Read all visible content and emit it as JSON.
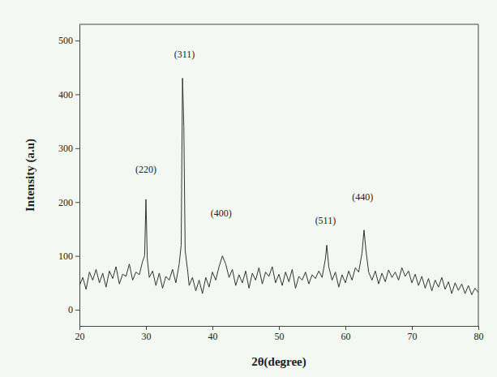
{
  "chart_data": {
    "type": "line",
    "x_label": "2θ(degree)",
    "y_label": "Intensity (a.u)",
    "color": "#333333",
    "xlim": [
      20,
      80
    ],
    "xticks": [
      20,
      30,
      40,
      50,
      60,
      70,
      80
    ],
    "ylim": [
      -30,
      530
    ],
    "yticks": [
      0,
      100,
      200,
      300,
      400,
      500
    ],
    "grid": false,
    "x": [
      20.0,
      20.5,
      21.0,
      21.5,
      22.0,
      22.5,
      23.0,
      23.5,
      24.0,
      24.5,
      25.0,
      25.5,
      26.0,
      26.5,
      27.0,
      27.5,
      28.0,
      28.5,
      29.0,
      29.5,
      29.8,
      30.0,
      30.2,
      30.5,
      31.0,
      31.5,
      32.0,
      32.5,
      33.0,
      33.5,
      34.0,
      34.5,
      35.0,
      35.3,
      35.5,
      35.7,
      35.9,
      36.3,
      36.5,
      37.0,
      37.5,
      38.0,
      38.5,
      39.0,
      39.5,
      40.0,
      40.5,
      41.0,
      41.5,
      42.0,
      42.5,
      43.0,
      43.5,
      44.0,
      44.5,
      45.0,
      45.5,
      46.0,
      46.5,
      47.0,
      47.5,
      48.0,
      48.5,
      49.0,
      49.5,
      50.0,
      50.5,
      51.0,
      51.5,
      52.0,
      52.5,
      53.0,
      53.5,
      54.0,
      54.5,
      55.0,
      55.5,
      56.0,
      56.5,
      57.0,
      57.2,
      57.5,
      58.0,
      58.5,
      59.0,
      59.5,
      60.0,
      60.5,
      61.0,
      61.5,
      62.0,
      62.5,
      62.8,
      63.1,
      63.5,
      64.0,
      64.5,
      65.0,
      65.5,
      66.0,
      66.5,
      67.0,
      67.5,
      68.0,
      68.5,
      69.0,
      69.5,
      70.0,
      70.5,
      71.0,
      71.5,
      72.0,
      72.5,
      73.0,
      73.5,
      74.0,
      74.5,
      75.0,
      75.5,
      76.0,
      76.5,
      77.0,
      77.5,
      78.0,
      78.5,
      79.0,
      79.5,
      80.0
    ],
    "values": [
      45,
      60,
      38,
      70,
      55,
      75,
      50,
      68,
      42,
      72,
      58,
      80,
      48,
      66,
      62,
      85,
      55,
      70,
      65,
      90,
      100,
      205,
      95,
      60,
      72,
      45,
      68,
      40,
      62,
      55,
      75,
      50,
      85,
      120,
      430,
      340,
      110,
      70,
      45,
      60,
      35,
      55,
      30,
      60,
      42,
      70,
      55,
      80,
      100,
      85,
      60,
      75,
      45,
      65,
      50,
      72,
      40,
      68,
      55,
      78,
      48,
      70,
      62,
      80,
      50,
      66,
      45,
      70,
      52,
      75,
      40,
      62,
      55,
      70,
      48,
      65,
      58,
      72,
      60,
      95,
      120,
      80,
      55,
      70,
      42,
      65,
      50,
      72,
      55,
      78,
      70,
      105,
      148,
      110,
      70,
      55,
      72,
      48,
      68,
      52,
      74,
      60,
      70,
      55,
      78,
      62,
      72,
      50,
      66,
      45,
      62,
      40,
      58,
      35,
      55,
      42,
      60,
      38,
      52,
      30,
      50,
      36,
      48,
      30,
      45,
      28,
      40,
      32
    ],
    "annotations": [
      {
        "text": "(220)",
        "x": 30.0,
        "y": 255
      },
      {
        "text": "(311)",
        "x": 35.8,
        "y": 468
      },
      {
        "text": "(400)",
        "x": 41.3,
        "y": 173
      },
      {
        "text": "(511)",
        "x": 57.0,
        "y": 160
      },
      {
        "text": "(440)",
        "x": 62.6,
        "y": 204
      }
    ]
  }
}
